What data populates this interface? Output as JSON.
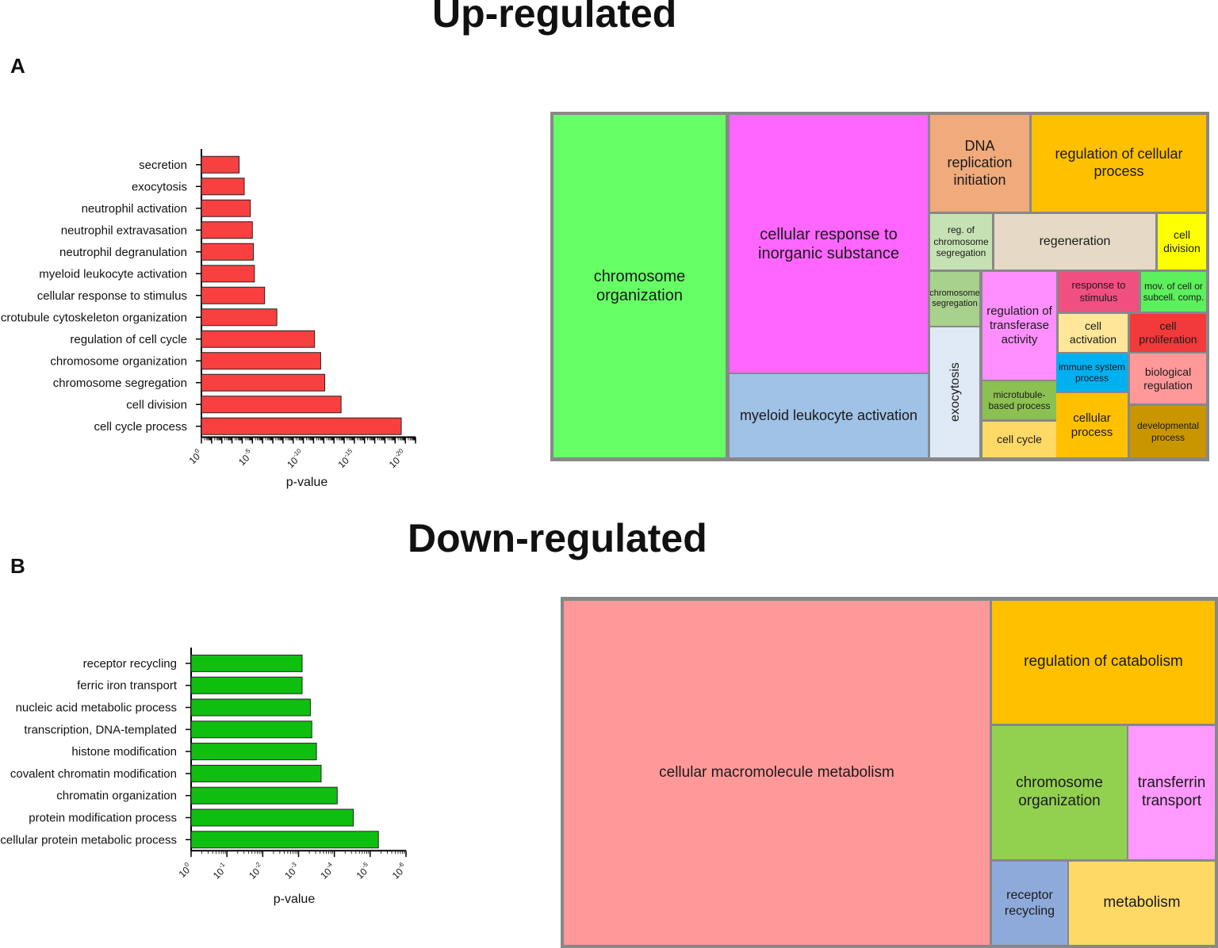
{
  "section_titles": {
    "up": "Up-regulated",
    "down": "Down-regulated"
  },
  "panel_labels": {
    "a": "A",
    "b": "B"
  },
  "chart_data": [
    {
      "type": "bar",
      "orientation": "horizontal",
      "color": "#f94040",
      "xlabel": "p-value",
      "xscale": "log",
      "tick_labels": [
        "10^0",
        "10^-5",
        "10^-10",
        "10^-15",
        "10^-20"
      ],
      "xlim_exponent": [
        0,
        -21
      ],
      "categories": [
        "secretion",
        "exocytosis",
        "neutrophil activation",
        "neutrophil extravasation",
        "neutrophil degranulation",
        "myeloid leukocyte activation",
        "cellular response to stimulus",
        "microtubule cytoskeleton organization",
        "regulation of cell cycle",
        "chromosome organization",
        "chromosome segregation",
        "cell division",
        "cell cycle process"
      ],
      "values_exponent": [
        -3.7,
        -4.2,
        -4.8,
        -5.0,
        -5.1,
        -5.2,
        -6.2,
        -7.4,
        -11.1,
        -11.7,
        -12.1,
        -13.7,
        -19.6
      ]
    },
    {
      "type": "bar",
      "orientation": "horizontal",
      "color": "#0fbf0f",
      "xlabel": "p-value",
      "xscale": "log",
      "tick_labels": [
        "10^0",
        "10^-1",
        "10^-2",
        "10^-3",
        "10^-4",
        "10^-5",
        "10^-6"
      ],
      "xlim_exponent": [
        0,
        -6
      ],
      "categories": [
        "receptor recycling",
        "ferric iron transport",
        "nucleic acid metabolic process",
        "transcription, DNA-templated",
        "histone modification",
        "covalent chromatin modification",
        "chromatin organization",
        "protein modification process",
        "cellular protein metabolic process"
      ],
      "values_exponent": [
        -3.1,
        -3.1,
        -3.33,
        -3.37,
        -3.5,
        -3.63,
        -4.08,
        -4.53,
        -5.23
      ]
    }
  ],
  "treemaps": {
    "up": [
      {
        "label": "chromosome organization",
        "color": "#66ff66"
      },
      {
        "label": "cellular response to inorganic substance",
        "color": "#ff66ff"
      },
      {
        "label": "myeloid leukocyte activation",
        "color": "#9fc2e6"
      },
      {
        "label": "DNA replication initiation",
        "color": "#f0aa7c"
      },
      {
        "label": "regulation of cellular process",
        "color": "#ffc000"
      },
      {
        "label": "reg. of chromosome segregation",
        "color": "#c6e2b4"
      },
      {
        "label": "regeneration",
        "color": "#e6dac6"
      },
      {
        "label": "cell division",
        "color": "#ffff00"
      },
      {
        "label": "chromosome segregation",
        "color": "#a9d18e"
      },
      {
        "label": "exocytosis",
        "color": "#dfe9f5"
      },
      {
        "label": "regulation of transferase activity",
        "color": "#ff8fff"
      },
      {
        "label": "microtubule-based process",
        "color": "#8cc152"
      },
      {
        "label": "cell cycle",
        "color": "#ffd966"
      },
      {
        "label": "response to stimulus",
        "color": "#f0507f"
      },
      {
        "label": "mov. of cell or subcell. comp.",
        "color": "#5cf05c"
      },
      {
        "label": "cell activation",
        "color": "#ffe699"
      },
      {
        "label": "cell proliferation",
        "color": "#f23a3a"
      },
      {
        "label": "immune system process",
        "color": "#00b0f0"
      },
      {
        "label": "biological regulation",
        "color": "#ff9999"
      },
      {
        "label": "cellular process",
        "color": "#ffc000"
      },
      {
        "label": "developmental process",
        "color": "#c99600"
      }
    ],
    "down": [
      {
        "label": "cellular macromolecule metabolism",
        "color": "#ff9999"
      },
      {
        "label": "regulation of catabolism",
        "color": "#ffc000"
      },
      {
        "label": "chromosome organization",
        "color": "#92d050"
      },
      {
        "label": "transferrin transport",
        "color": "#ff99ff"
      },
      {
        "label": "receptor recycling",
        "color": "#8eaadb"
      },
      {
        "label": "metabolism",
        "color": "#ffd966"
      }
    ]
  }
}
